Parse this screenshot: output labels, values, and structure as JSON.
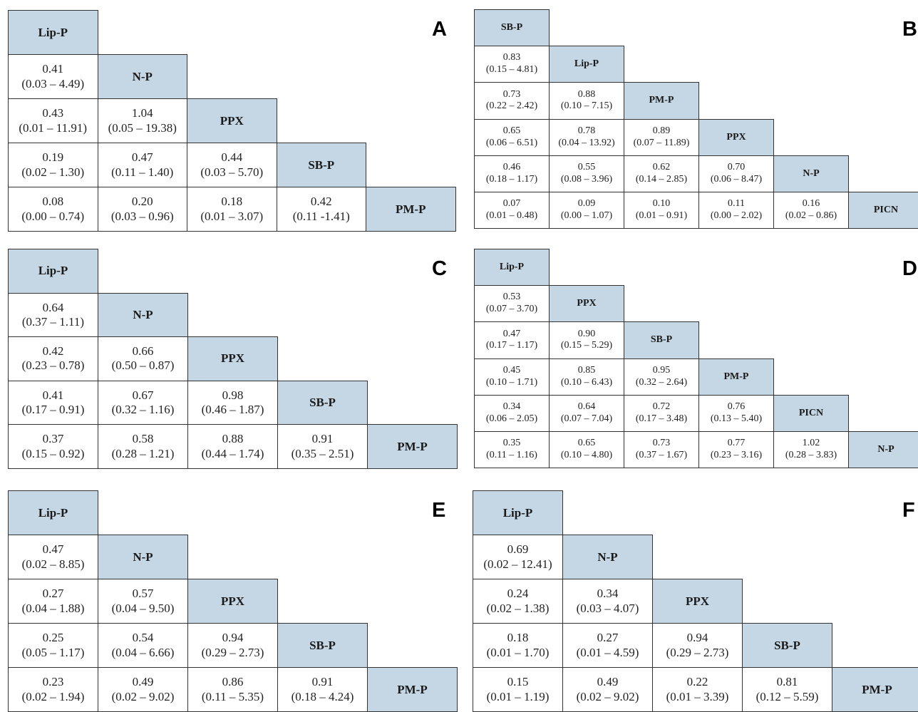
{
  "panels": [
    {
      "id": "A",
      "letter": "A",
      "labels": [
        "Lip-P",
        "N-P",
        "PPX",
        "SB-P",
        "PM-P"
      ],
      "rows": [
        [],
        [
          {
            "or": "0.41",
            "ci": "(0.03 – 4.49)"
          }
        ],
        [
          {
            "or": "0.43",
            "ci": "(0.01 – 11.91)"
          },
          {
            "or": "1.04",
            "ci": "(0.05 – 19.38)"
          }
        ],
        [
          {
            "or": "0.19",
            "ci": "(0.02 – 1.30)"
          },
          {
            "or": "0.47",
            "ci": "(0.11 – 1.40)"
          },
          {
            "or": "0.44",
            "ci": "(0.03 – 5.70)"
          }
        ],
        [
          {
            "or": "0.08",
            "ci": "(0.00 – 0.74)"
          },
          {
            "or": "0.20",
            "ci": "(0.03 – 0.96)"
          },
          {
            "or": "0.18",
            "ci": "(0.01 – 3.07)"
          },
          {
            "or": "0.42",
            "ci": "(0.11 -1.41)"
          }
        ]
      ]
    },
    {
      "id": "B",
      "letter": "B",
      "labels": [
        "SB-P",
        "Lip-P",
        "PM-P",
        "PPX",
        "N-P",
        "PICN"
      ],
      "rows": [
        [],
        [
          {
            "or": "0.83",
            "ci": "(0.15 – 4.81)"
          }
        ],
        [
          {
            "or": "0.73",
            "ci": "(0.22 – 2.42)"
          },
          {
            "or": "0.88",
            "ci": "(0.10 – 7.15)"
          }
        ],
        [
          {
            "or": "0.65",
            "ci": "(0.06 – 6.51)"
          },
          {
            "or": "0.78",
            "ci": "(0.04 – 13.92)"
          },
          {
            "or": "0.89",
            "ci": "(0.07 – 11.89)"
          }
        ],
        [
          {
            "or": "0.46",
            "ci": "(0.18 – 1.17)"
          },
          {
            "or": "0.55",
            "ci": "(0.08 – 3.96)"
          },
          {
            "or": "0.62",
            "ci": "(0.14 – 2.85)"
          },
          {
            "or": "0.70",
            "ci": "(0.06 – 8.47)"
          }
        ],
        [
          {
            "or": "0.07",
            "ci": "(0.01 – 0.48)"
          },
          {
            "or": "0.09",
            "ci": "(0.00 – 1.07)"
          },
          {
            "or": "0.10",
            "ci": "(0.01 – 0.91)"
          },
          {
            "or": "0.11",
            "ci": "(0.00 – 2.02)"
          },
          {
            "or": "0.16",
            "ci": "(0.02 – 0.86)"
          }
        ]
      ]
    },
    {
      "id": "C",
      "letter": "C",
      "labels": [
        "Lip-P",
        "N-P",
        "PPX",
        "SB-P",
        "PM-P"
      ],
      "rows": [
        [],
        [
          {
            "or": "0.64",
            "ci": "(0.37 – 1.11)"
          }
        ],
        [
          {
            "or": "0.42",
            "ci": "(0.23 – 0.78)"
          },
          {
            "or": "0.66",
            "ci": "(0.50 – 0.87)"
          }
        ],
        [
          {
            "or": "0.41",
            "ci": "(0.17 – 0.91)"
          },
          {
            "or": "0.67",
            "ci": "(0.32 – 1.16)"
          },
          {
            "or": "0.98",
            "ci": "(0.46 – 1.87)"
          }
        ],
        [
          {
            "or": "0.37",
            "ci": "(0.15 – 0.92)"
          },
          {
            "or": "0.58",
            "ci": "(0.28 – 1.21)"
          },
          {
            "or": "0.88",
            "ci": "(0.44 – 1.74)"
          },
          {
            "or": "0.91",
            "ci": "(0.35 – 2.51)"
          }
        ]
      ]
    },
    {
      "id": "D",
      "letter": "D",
      "labels": [
        "Lip-P",
        "PPX",
        "SB-P",
        "PM-P",
        "PICN",
        "N-P"
      ],
      "rows": [
        [],
        [
          {
            "or": "0.53",
            "ci": "(0.07 – 3.70)"
          }
        ],
        [
          {
            "or": "0.47",
            "ci": "(0.17 – 1.17)"
          },
          {
            "or": "0.90",
            "ci": "(0.15 – 5.29)"
          }
        ],
        [
          {
            "or": "0.45",
            "ci": "(0.10 – 1.71)"
          },
          {
            "or": "0.85",
            "ci": "(0.10 – 6.43)"
          },
          {
            "or": "0.95",
            "ci": "(0.32 – 2.64)"
          }
        ],
        [
          {
            "or": "0.34",
            "ci": "(0.06 – 2.05)"
          },
          {
            "or": "0.64",
            "ci": "(0.07 – 7.04)"
          },
          {
            "or": "0.72",
            "ci": "(0.17 – 3.48)"
          },
          {
            "or": "0.76",
            "ci": "(0.13 – 5.40)"
          }
        ],
        [
          {
            "or": "0.35",
            "ci": "(0.11 – 1.16)"
          },
          {
            "or": "0.65",
            "ci": "(0.10 – 4.80)"
          },
          {
            "or": "0.73",
            "ci": "(0.37 – 1.67)"
          },
          {
            "or": "0.77",
            "ci": "(0.23 – 3.16)"
          },
          {
            "or": "1.02",
            "ci": "(0.28 – 3.83)"
          }
        ]
      ]
    },
    {
      "id": "E",
      "letter": "E",
      "labels": [
        "Lip-P",
        "N-P",
        "PPX",
        "SB-P",
        "PM-P"
      ],
      "rows": [
        [],
        [
          {
            "or": "0.47",
            "ci": "(0.02 – 8.85)"
          }
        ],
        [
          {
            "or": "0.27",
            "ci": "(0.04 – 1.88)"
          },
          {
            "or": "0.57",
            "ci": "(0.04 – 9.50)"
          }
        ],
        [
          {
            "or": "0.25",
            "ci": "(0.05 – 1.17)"
          },
          {
            "or": "0.54",
            "ci": "(0.04 – 6.66)"
          },
          {
            "or": "0.94",
            "ci": "(0.29 – 2.73)"
          }
        ],
        [
          {
            "or": "0.23",
            "ci": "(0.02 – 1.94)"
          },
          {
            "or": "0.49",
            "ci": "(0.02 – 9.02)"
          },
          {
            "or": "0.86",
            "ci": "(0.11 – 5.35)"
          },
          {
            "or": "0.91",
            "ci": "(0.18 – 4.24)"
          }
        ]
      ]
    },
    {
      "id": "F",
      "letter": "F",
      "labels": [
        "Lip-P",
        "N-P",
        "PPX",
        "SB-P",
        "PM-P"
      ],
      "rows": [
        [],
        [
          {
            "or": "0.69",
            "ci": "(0.02 – 12.41)"
          }
        ],
        [
          {
            "or": "0.24",
            "ci": "(0.02 – 1.38)"
          },
          {
            "or": "0.34",
            "ci": "(0.03 – 4.07)"
          }
        ],
        [
          {
            "or": "0.18",
            "ci": "(0.01 – 1.70)"
          },
          {
            "or": "0.27",
            "ci": "(0.01 – 4.59)"
          },
          {
            "or": "0.94",
            "ci": "(0.29 – 2.73)"
          }
        ],
        [
          {
            "or": "0.15",
            "ci": "(0.01 – 1.19)"
          },
          {
            "or": "0.49",
            "ci": "(0.02 – 9.02)"
          },
          {
            "or": "0.22",
            "ci": "(0.01 – 3.39)"
          },
          {
            "or": "0.81",
            "ci": "(0.12 – 5.59)"
          }
        ]
      ]
    }
  ]
}
